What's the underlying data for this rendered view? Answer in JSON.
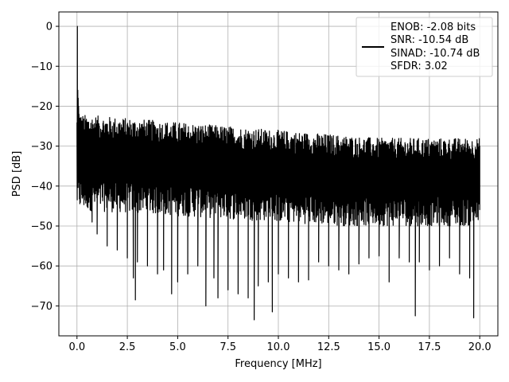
{
  "chart_data": {
    "type": "line",
    "xlabel": "Frequency [MHz]",
    "ylabel": "PSD [dB]",
    "xlim": [
      -0.9,
      20.9
    ],
    "ylim": [
      -77.5,
      3.6
    ],
    "xticks": [
      0.0,
      2.5,
      5.0,
      7.5,
      10.0,
      12.5,
      15.0,
      17.5,
      20.0
    ],
    "xtick_labels": [
      "0.0",
      "2.5",
      "5.0",
      "7.5",
      "10.0",
      "12.5",
      "15.0",
      "17.5",
      "20.0"
    ],
    "yticks": [
      0,
      -10,
      -20,
      -30,
      -40,
      -50,
      -60,
      -70
    ],
    "ytick_labels": [
      "0",
      "−10",
      "−20",
      "−30",
      "−40",
      "−50",
      "−60",
      "−70"
    ],
    "grid": true,
    "legend_placement": "top-right",
    "line_color": "#000000",
    "legend": {
      "lines": [
        "ENOB: -2.08 bits",
        "SNR: -10.54 dB",
        "SINAD: -10.74 dB",
        "SFDR: 3.02"
      ]
    },
    "series": [
      {
        "name": "ENOB: -2.08 bits\nSNR: -10.54 dB\nSINAD: -10.74 dB\nSFDR: 3.02",
        "x": [
          0.0,
          0.02,
          0.04,
          0.06,
          0.08,
          0.1,
          0.15,
          0.2,
          0.3,
          0.4,
          0.5,
          0.75,
          1.0,
          1.5,
          2.0,
          2.5,
          2.8,
          2.9,
          3.0,
          3.5,
          4.0,
          4.3,
          4.7,
          5.0,
          5.5,
          6.0,
          6.4,
          6.8,
          7.0,
          7.5,
          8.0,
          8.5,
          8.8,
          9.0,
          9.5,
          9.7,
          10.0,
          10.5,
          11.0,
          11.5,
          12.0,
          12.5,
          13.0,
          13.5,
          14.0,
          14.5,
          15.0,
          15.5,
          16.0,
          16.5,
          16.8,
          17.0,
          17.5,
          18.0,
          18.5,
          19.0,
          19.5,
          19.7,
          20.0
        ],
        "y": [
          -26,
          0,
          -16,
          -18,
          -20,
          -22,
          -23,
          -24,
          -25,
          -27,
          -45,
          -49,
          -52,
          -55,
          -56,
          -58,
          -63,
          -68.5,
          -59,
          -60,
          -62,
          -61,
          -67,
          -64,
          -62,
          -60,
          -70,
          -63,
          -68,
          -66,
          -67,
          -68,
          -73.5,
          -65,
          -64,
          -71.5,
          -62,
          -63,
          -64,
          -63.5,
          -59,
          -60,
          -61,
          -62,
          -59.5,
          -58,
          -57.5,
          -64,
          -58,
          -59,
          -72.5,
          -59,
          -61,
          -60,
          -58,
          -62,
          -63,
          -73,
          -46
        ]
      }
    ]
  }
}
